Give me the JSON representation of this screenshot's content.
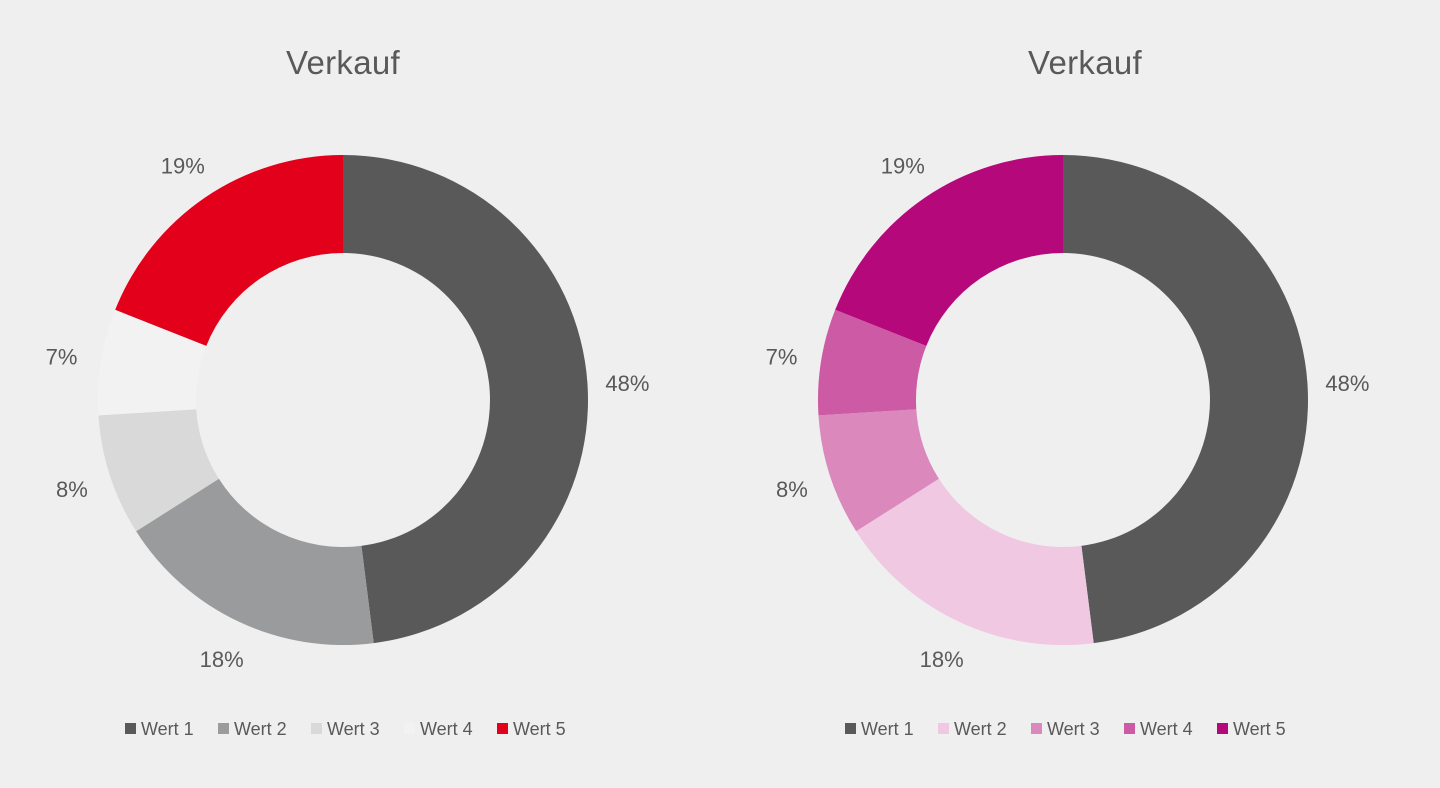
{
  "chart_data": [
    {
      "type": "pie",
      "title": "Verkauf",
      "categories": [
        "Wert 1",
        "Wert 2",
        "Wert 3",
        "Wert 4",
        "Wert 5"
      ],
      "values": [
        48,
        18,
        8,
        7,
        19
      ],
      "labels": [
        "48%",
        "18%",
        "8%",
        "7%",
        "19%"
      ],
      "colors": [
        "#595959",
        "#9a9b9c",
        "#d9d9d9",
        "#f2f2f2",
        "#e2001a"
      ],
      "legend": "bottom",
      "style": "donut"
    },
    {
      "type": "pie",
      "title": "Verkauf",
      "categories": [
        "Wert 1",
        "Wert 2",
        "Wert 3",
        "Wert 4",
        "Wert 5"
      ],
      "values": [
        48,
        18,
        8,
        7,
        19
      ],
      "labels": [
        "48%",
        "18%",
        "8%",
        "7%",
        "19%"
      ],
      "colors": [
        "#595959",
        "#f0c8e2",
        "#db88bd",
        "#cd5aa4",
        "#b5087b"
      ],
      "legend": "bottom",
      "style": "donut"
    }
  ]
}
